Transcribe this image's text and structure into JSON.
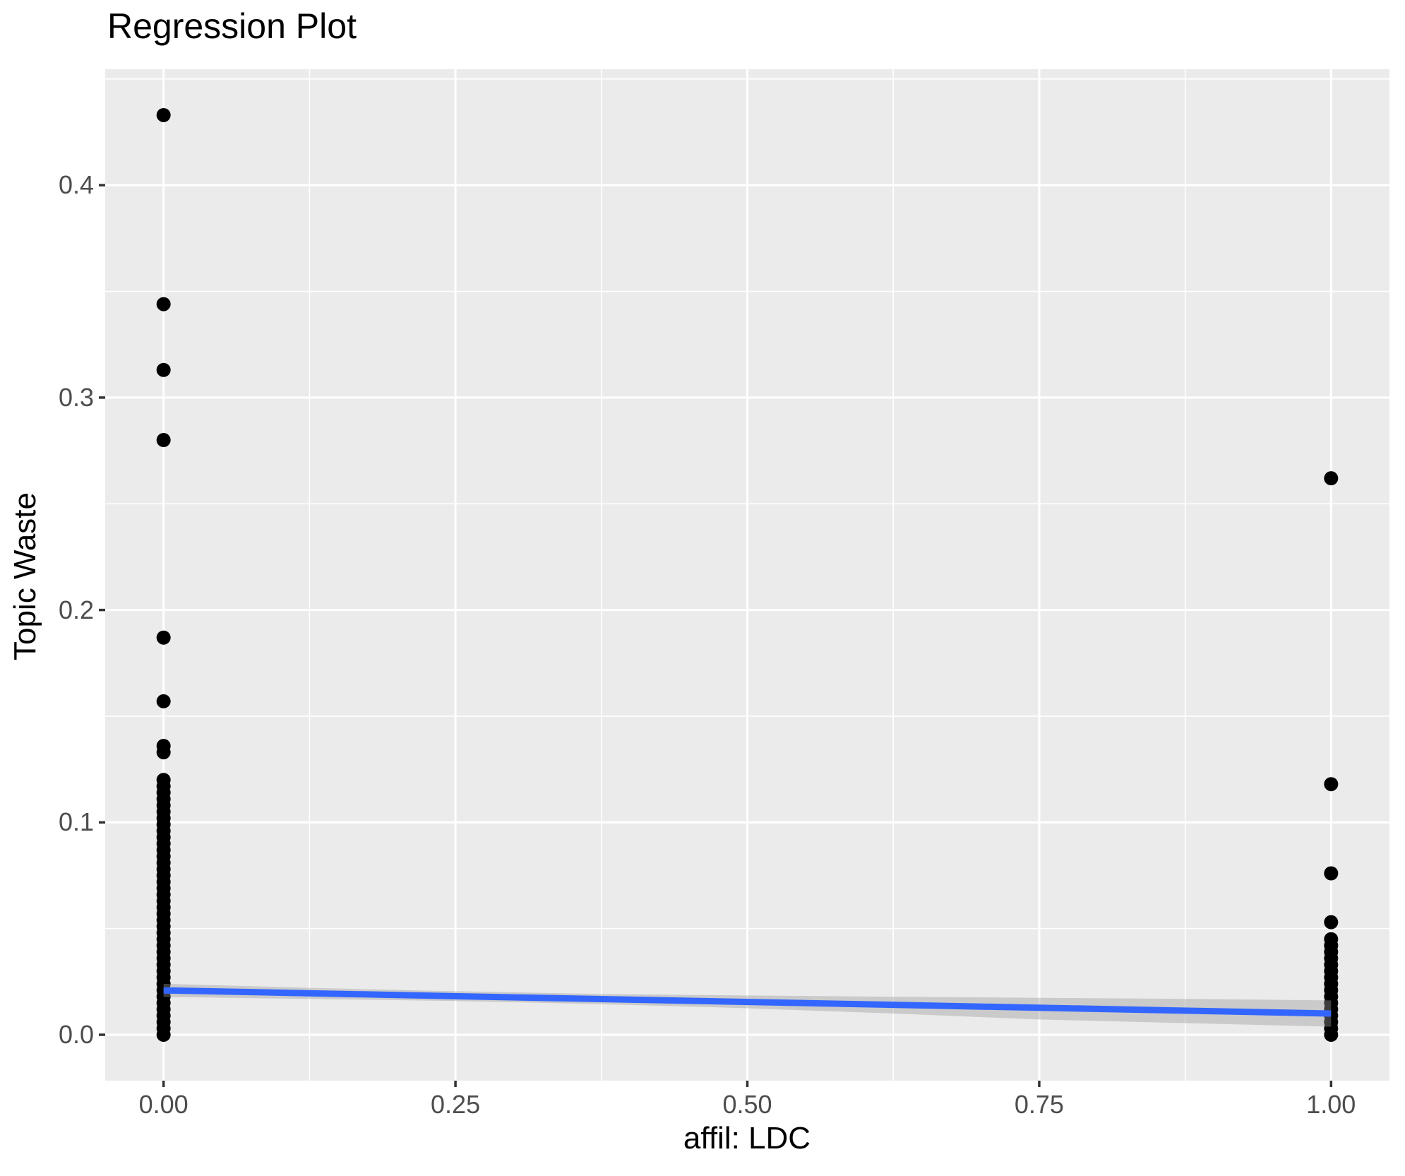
{
  "colors": {
    "panel_background": "#EBEBEB",
    "grid_line": "#FFFFFF",
    "point": "#000000",
    "regression_line": "#3366FF",
    "confidence_band": "#999999",
    "confidence_band_opacity": 0.4,
    "tick_label": "#4D4D4D",
    "tick_mark": "#333333",
    "title_text": "#000000"
  },
  "chart_data": {
    "type": "scatter",
    "title": "Regression Plot",
    "xlabel": "affil: LDC",
    "ylabel": "Topic Waste",
    "xlim": [
      -0.05,
      1.05
    ],
    "ylim": [
      -0.0216,
      0.4546
    ],
    "grid": true,
    "legend": false,
    "x_ticks": {
      "values": [
        0,
        0.25,
        0.5,
        0.75,
        1.0
      ],
      "labels": [
        "0.00",
        "0.25",
        "0.50",
        "0.75",
        "1.00"
      ]
    },
    "y_ticks": {
      "values": [
        0,
        0.1,
        0.2,
        0.3,
        0.4
      ],
      "labels": [
        "0.0",
        "0.1",
        "0.2",
        "0.3",
        "0.4"
      ]
    },
    "x_minor": [
      0.125,
      0.375,
      0.625,
      0.875
    ],
    "y_minor": [
      0.05,
      0.15,
      0.25,
      0.35,
      0.45
    ],
    "point_radius_px": 10,
    "series": [
      {
        "name": "observations at affil LDC = 0",
        "x": 0,
        "y": [
          0.433,
          0.344,
          0.313,
          0.28,
          0.187,
          0.157,
          0.136,
          0.133,
          0.12,
          0.117,
          0.114,
          0.111,
          0.108,
          0.105,
          0.102,
          0.099,
          0.096,
          0.093,
          0.09,
          0.087,
          0.084,
          0.081,
          0.078,
          0.075,
          0.072,
          0.069,
          0.066,
          0.063,
          0.06,
          0.057,
          0.054,
          0.051,
          0.048,
          0.045,
          0.042,
          0.039,
          0.036,
          0.033,
          0.03,
          0.027,
          0.024,
          0.021,
          0.018,
          0.015,
          0.012,
          0.009,
          0.006,
          0.003,
          0.0
        ]
      },
      {
        "name": "observations at affil LDC = 1",
        "x": 1,
        "y": [
          0.262,
          0.118,
          0.076,
          0.053,
          0.045,
          0.042,
          0.039,
          0.036,
          0.033,
          0.03,
          0.027,
          0.024,
          0.021,
          0.018,
          0.015,
          0.012,
          0.009,
          0.006,
          0.003,
          0.0
        ]
      }
    ],
    "regression_line": {
      "x": [
        0,
        1
      ],
      "y": [
        0.0209,
        0.01
      ]
    },
    "confidence_band": {
      "x": [
        0,
        0.125,
        0.25,
        0.375,
        0.5,
        0.625,
        0.75,
        0.875,
        1.0
      ],
      "upper": [
        0.024,
        0.0221,
        0.0205,
        0.0192,
        0.0185,
        0.0179,
        0.0174,
        0.0169,
        0.0162
      ],
      "lower": [
        0.0178,
        0.0169,
        0.0159,
        0.0144,
        0.0125,
        0.01,
        0.0072,
        0.0055,
        0.0038
      ]
    }
  }
}
